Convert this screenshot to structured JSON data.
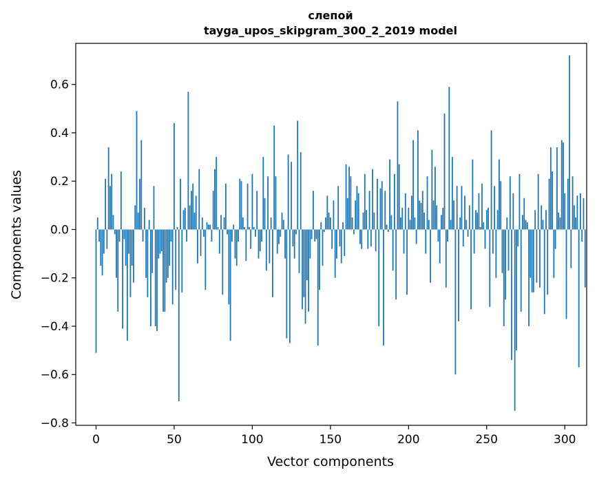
{
  "chart_data": {
    "type": "bar",
    "title": "слепой",
    "subtitle": "tayga_upos_skipgram_300_2_2019 model",
    "xlabel": "Vector components",
    "ylabel": "Components values",
    "xlim": [
      -13,
      314
    ],
    "ylim": [
      -0.81,
      0.77
    ],
    "xticks": [
      0,
      50,
      100,
      150,
      200,
      250,
      300
    ],
    "yticks": [
      -0.8,
      -0.6,
      -0.4,
      -0.2,
      0.0,
      0.2,
      0.4,
      0.6
    ],
    "ytick_labels": [
      "−0.8",
      "−0.6",
      "−0.4",
      "−0.2",
      "0.0",
      "0.2",
      "0.4",
      "0.6"
    ],
    "xtick_labels": [
      "0",
      "50",
      "100",
      "150",
      "200",
      "250",
      "300"
    ],
    "bar_color": "#1f77b4",
    "values": [
      -0.51,
      0.05,
      -0.05,
      -0.15,
      -0.19,
      -0.1,
      0.21,
      -0.08,
      0.34,
      0.18,
      0.23,
      0.06,
      -0.02,
      -0.2,
      -0.34,
      -0.05,
      0.24,
      -0.41,
      -0.04,
      -0.15,
      -0.46,
      -0.1,
      -0.28,
      -0.15,
      -0.22,
      0.1,
      0.49,
      0.07,
      0.21,
      0.37,
      -0.05,
      0.09,
      -0.2,
      -0.28,
      0.04,
      -0.4,
      -0.18,
      0.18,
      -0.4,
      -0.42,
      -0.12,
      -0.1,
      -0.09,
      -0.34,
      -0.34,
      -0.22,
      -0.2,
      -0.15,
      -0.05,
      -0.31,
      0.44,
      -0.25,
      0.01,
      -0.71,
      0.21,
      -0.26,
      0.08,
      0.09,
      -0.05,
      0.57,
      0.1,
      0.16,
      0.19,
      0.07,
      0.14,
      -0.14,
      0.25,
      -0.11,
      0.05,
      -0.03,
      -0.25,
      0.03,
      0.02,
      0.02,
      -0.05,
      0.16,
      0.25,
      0.3,
      0.01,
      -0.1,
      0.06,
      -0.27,
      0.05,
      0.19,
      -0.02,
      -0.31,
      -0.46,
      -0.05,
      0.02,
      -0.12,
      -0.15,
      -0.05,
      0.21,
      0.2,
      0.05,
      0.01,
      -0.13,
      0.19,
      0.01,
      -0.08,
      0.23,
      0.01,
      -0.03,
      0.16,
      -0.12,
      -0.09,
      -0.05,
      0.3,
      0.13,
      -0.17,
      0.22,
      -0.14,
      0.05,
      -0.28,
      0.43,
      0.22,
      -0.1,
      -0.06,
      -0.03,
      0.07,
      0.04,
      -0.12,
      -0.45,
      0.31,
      -0.47,
      0.28,
      -0.07,
      -0.12,
      -0.02,
      0.45,
      -0.18,
      0.32,
      -0.33,
      -0.28,
      -0.39,
      -0.21,
      -0.34,
      -0.12,
      -0.04,
      0.16,
      -0.05,
      -0.04,
      -0.48,
      -0.25,
      0.03,
      -0.15,
      -0.01,
      0.05,
      0.14,
      0.07,
      0.05,
      -0.08,
      0.12,
      -0.2,
      -0.12,
      0.18,
      -0.07,
      -0.14,
      0.03,
      -0.11,
      0.27,
      0.13,
      0.26,
      0.22,
      0.05,
      -0.02,
      0.12,
      0.18,
      0.15,
      -0.06,
      -0.08,
      0.07,
      0.23,
      0.08,
      -0.08,
      0.16,
      -0.07,
      0.25,
      0.07,
      -0.09,
      0.21,
      -0.4,
      0.17,
      0.2,
      -0.48,
      0.16,
      0.02,
      -0.01,
      0.29,
      0.06,
      -0.17,
      0.23,
      -0.29,
      0.53,
      0.27,
      0.05,
      0.09,
      -0.1,
      0.15,
      -0.27,
      0.09,
      0.04,
      0.14,
      0.37,
      0.05,
      -0.06,
      0.41,
      0.12,
      0.11,
      0.16,
      0.07,
      -0.1,
      0.22,
      0.04,
      -0.22,
      0.33,
      0.12,
      0.26,
      0.1,
      -0.05,
      -0.14,
      0.06,
      0.09,
      0.48,
      -0.24,
      -0.05,
      0.59,
      0.04,
      0.3,
      0.12,
      -0.6,
      0.18,
      -0.38,
      0.05,
      0.18,
      -0.07,
      0.14,
      0.04,
      -0.03,
      0.1,
      -0.33,
      0.29,
      -0.1,
      0.08,
      0.07,
      0.15,
      0.01,
      0.19,
      0.03,
      -0.08,
      0.08,
      0.09,
      -0.32,
      0.41,
      -0.1,
      0.18,
      -0.2,
      0.08,
      0.29,
      0.2,
      -0.18,
      -0.4,
      -0.29,
      0.05,
      -0.17,
      0.22,
      -0.54,
      0.15,
      -0.75,
      -0.5,
      -0.07,
      0.23,
      -0.34,
      0.06,
      0.13,
      0.04,
      0.03,
      -0.4,
      -0.2,
      -0.26,
      -0.26,
      0.08,
      -0.22,
      0.23,
      -0.24,
      0.1,
      0.04,
      -0.35,
      0.08,
      -0.27,
      0.21,
      0.34,
      0.24,
      -0.2,
      -0.08,
      0.34,
      0.07,
      0.05,
      0.37,
      0.36,
      0.15,
      -0.37,
      0.21,
      0.72,
      -0.16,
      0.22,
      0.1,
      0.05,
      0.14,
      -0.57,
      0.15,
      -0.05,
      0.13,
      -0.24
    ]
  }
}
